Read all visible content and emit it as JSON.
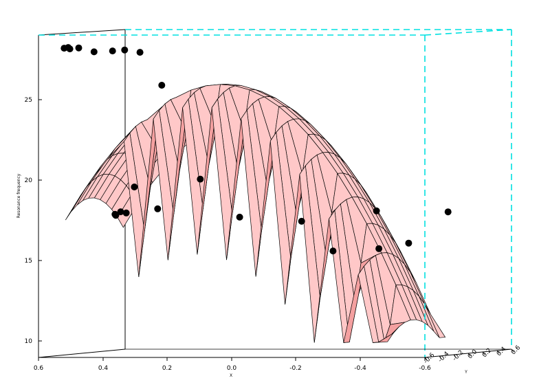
{
  "chart_data": {
    "type": "surface3d",
    "title": "",
    "xlabel": "X",
    "ylabel": "Y",
    "zlabel": "Resonance frequency",
    "xlim": [
      -0.6,
      0.6
    ],
    "ylim": [
      -0.6,
      0.6
    ],
    "zlim": [
      9.0,
      29.0
    ],
    "x_ticks": [
      "0.6",
      "0.4",
      "0.2",
      "0.0",
      "-0.2",
      "-0.4",
      "-0.6"
    ],
    "y_ticks": [
      "-0.6",
      "-0.4",
      "-0.2",
      "0.0",
      "0.2",
      "0.4",
      "0.6"
    ],
    "z_ticks": [
      "10",
      "15",
      "20",
      "25"
    ],
    "surface_color": "#ffc8c8",
    "surface_shadow_color": "#f4a0a0",
    "surface_edge_color": "#000000",
    "box_color": "#00e0e0",
    "marker_color": "#000000",
    "points_note": "scatter samples estimated from projection",
    "points": [
      {
        "x": 0.24,
        "y": -0.2,
        "z": 28.0
      },
      {
        "x": 0.31,
        "y": -0.1,
        "z": 28.1
      },
      {
        "x": 0.37,
        "y": 0.0,
        "z": 28.0
      },
      {
        "x": 0.45,
        "y": 0.1,
        "z": 27.9
      },
      {
        "x": 0.52,
        "y": 0.2,
        "z": 28.1
      },
      {
        "x": 0.57,
        "y": 0.3,
        "z": 28.0
      },
      {
        "x": 0.61,
        "y": 0.4,
        "z": 28.0
      },
      {
        "x": 0.62,
        "y": 0.5,
        "z": 28.0
      },
      {
        "x": 0.15,
        "y": -0.3,
        "z": 26.0
      },
      {
        "x": 0.35,
        "y": 0.1,
        "z": 17.9
      },
      {
        "x": 0.36,
        "y": 0.0,
        "z": 17.8
      },
      {
        "x": 0.34,
        "y": -0.1,
        "z": 17.9
      },
      {
        "x": 0.3,
        "y": -0.2,
        "z": 18.1
      },
      {
        "x": 0.28,
        "y": -0.1,
        "z": 19.6
      },
      {
        "x": 0.23,
        "y": 0.0,
        "z": 18.2
      },
      {
        "x": 0.12,
        "y": 0.1,
        "z": 20.0
      },
      {
        "x": 0.02,
        "y": 0.2,
        "z": 17.6
      },
      {
        "x": -0.15,
        "y": 0.3,
        "z": 17.3
      },
      {
        "x": -0.36,
        "y": 0.4,
        "z": 17.9
      },
      {
        "x": -0.56,
        "y": 0.5,
        "z": 17.8
      },
      {
        "x": -0.27,
        "y": 0.2,
        "z": 15.5
      },
      {
        "x": -0.39,
        "y": 0.3,
        "z": 15.6
      },
      {
        "x": -0.46,
        "y": 0.4,
        "z": 15.9
      }
    ]
  }
}
